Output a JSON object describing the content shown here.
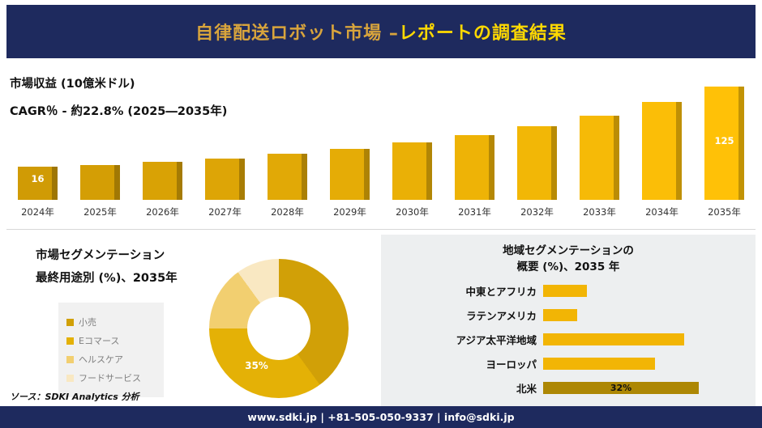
{
  "header": {
    "title_part1": "自律配送ロボット市場 –",
    "title_part2": "レポートの調査結果"
  },
  "chart_data": [
    {
      "type": "bar",
      "title": "市場収益 (10億米ドル)",
      "subtitle": "CAGR％ - 約22.8% (2025―2035年)",
      "categories": [
        "2024年",
        "2025年",
        "2026年",
        "2027年",
        "2028年",
        "2029年",
        "2030年",
        "2031年",
        "2032年",
        "2033年",
        "2034年",
        "2035年"
      ],
      "values": [
        16,
        19,
        23,
        28,
        34,
        41,
        49,
        59,
        71,
        86,
        104,
        125
      ],
      "first_bar_label": "16",
      "last_bar_label": "125",
      "color_start": "#d09b05",
      "color_end": "#ffc107",
      "ylabel": "10億米ドル",
      "grid": false
    },
    {
      "type": "pie",
      "title_lines": [
        "市場セグメンテーション",
        "最終用途別 (%)、2035年"
      ],
      "labels": [
        "小売",
        "Eコマース",
        "ヘルスケア",
        "フードサービス"
      ],
      "values": [
        40,
        35,
        15,
        10
      ],
      "colors": [
        "#d1a007",
        "#e4b106",
        "#f2cf70",
        "#f9e8c2"
      ],
      "slice_label": "35%",
      "legend_position": "left"
    },
    {
      "type": "bar",
      "orientation": "horizontal",
      "title_lines": [
        "地域セグメンテーションの",
        "概要 (%)、2035 年"
      ],
      "categories": [
        "中東とアフリカ",
        "ラテンアメリカ",
        "アジア太平洋地域",
        "ヨーロッパ",
        "北米"
      ],
      "values": [
        9,
        7,
        29,
        23,
        32
      ],
      "bar_color": "#f2b505",
      "highlight_index": 4,
      "highlight_color": "#ad8704",
      "highlight_label": "32%",
      "grid": false
    }
  ],
  "source_note": "ソース：SDKI Analytics 分析",
  "footer": {
    "text": "www.sdki.jp | +81-505-050-9337 | info@sdki.jp"
  },
  "colors": {
    "navy": "#1e2a5e",
    "gold": "#d8a43c",
    "yellow": "#ffd900",
    "panel_gray": "#edeff0"
  }
}
